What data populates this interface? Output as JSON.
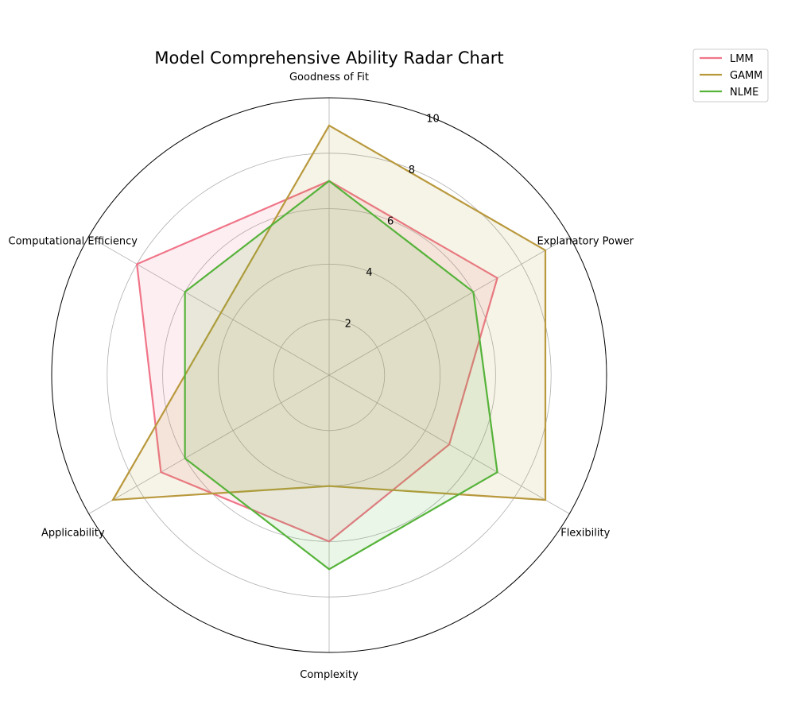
{
  "chart_data": {
    "type": "radar",
    "title": "Model Comprehensive Ability Radar Chart",
    "axes": [
      "Goodness of Fit",
      "Explanatory Power",
      "Flexibility",
      "Complexity",
      "Applicability",
      "Computational Efficiency"
    ],
    "rlim": [
      0,
      10
    ],
    "rticks": [
      2,
      4,
      6,
      8,
      10
    ],
    "grid": true,
    "legend_position": "top-right",
    "series": [
      {
        "name": "LMM",
        "color": "#f07589",
        "values": [
          7,
          7,
          5,
          6,
          7,
          8
        ]
      },
      {
        "name": "GAMM",
        "color": "#b9993d",
        "values": [
          9,
          9,
          9,
          4,
          9,
          4.5
        ]
      },
      {
        "name": "NLME",
        "color": "#56b33a",
        "values": [
          7,
          6,
          7,
          7,
          6,
          6
        ]
      }
    ]
  }
}
